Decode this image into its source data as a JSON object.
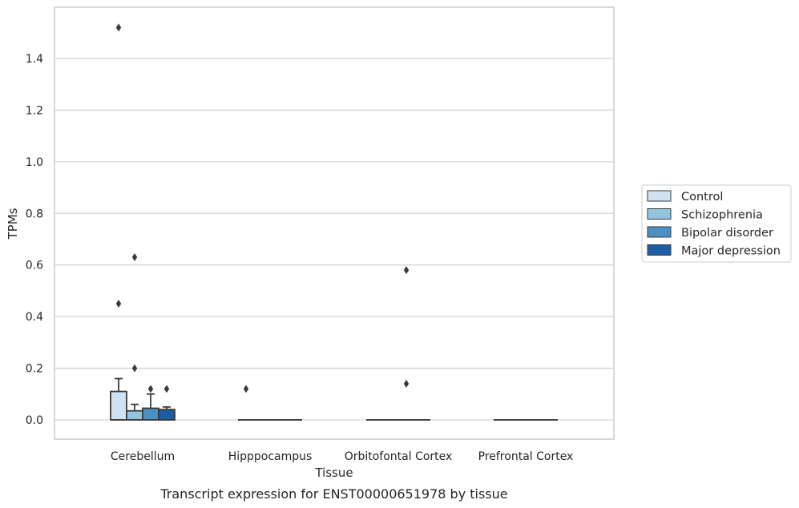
{
  "chart_data": {
    "type": "box",
    "xlabel": "Tissue",
    "ylabel": "TPMs",
    "caption": "Transcript expression for ENST00000651978 by tissue",
    "ylim": [
      -0.075,
      1.57
    ],
    "yticks": [
      0.0,
      0.2,
      0.4,
      0.6,
      0.8,
      1.0,
      1.2,
      1.4
    ],
    "ytick_labels": [
      "0.0",
      "0.2",
      "0.4",
      "0.6",
      "0.8",
      "1.0",
      "1.2",
      "1.4"
    ],
    "grid": true,
    "legend_position": "right",
    "categories": [
      "Cerebellum",
      "Hipppocampus",
      "Orbitofontal Cortex",
      "Prefrontal Cortex"
    ],
    "series": [
      {
        "name": "Control",
        "color": "#cfe1f2",
        "boxes": [
          {
            "q1": 0.0,
            "median": 0.0,
            "q3": 0.11,
            "whisker_low": 0.0,
            "whisker_high": 0.16,
            "outliers": [
              0.45,
              1.52
            ]
          },
          {
            "q1": 0.0,
            "median": 0.0,
            "q3": 0.0,
            "whisker_low": 0.0,
            "whisker_high": 0.0,
            "outliers": [
              0.12
            ]
          },
          {
            "q1": 0.0,
            "median": 0.0,
            "q3": 0.0,
            "whisker_low": 0.0,
            "whisker_high": 0.0,
            "outliers": []
          },
          {
            "q1": 0.0,
            "median": 0.0,
            "q3": 0.0,
            "whisker_low": 0.0,
            "whisker_high": 0.0,
            "outliers": []
          }
        ]
      },
      {
        "name": "Schizophrenia",
        "color": "#93c4de",
        "boxes": [
          {
            "q1": 0.0,
            "median": 0.0,
            "q3": 0.035,
            "whisker_low": 0.0,
            "whisker_high": 0.06,
            "outliers": [
              0.2,
              0.63
            ]
          },
          {
            "q1": 0.0,
            "median": 0.0,
            "q3": 0.0,
            "whisker_low": 0.0,
            "whisker_high": 0.0,
            "outliers": []
          },
          {
            "q1": 0.0,
            "median": 0.0,
            "q3": 0.0,
            "whisker_low": 0.0,
            "whisker_high": 0.0,
            "outliers": []
          },
          {
            "q1": 0.0,
            "median": 0.0,
            "q3": 0.0,
            "whisker_low": 0.0,
            "whisker_high": 0.0,
            "outliers": []
          }
        ]
      },
      {
        "name": "Bipolar disorder",
        "color": "#4a90c2",
        "boxes": [
          {
            "q1": 0.0,
            "median": 0.0,
            "q3": 0.045,
            "whisker_low": 0.0,
            "whisker_high": 0.1,
            "outliers": [
              0.12
            ]
          },
          {
            "q1": 0.0,
            "median": 0.0,
            "q3": 0.0,
            "whisker_low": 0.0,
            "whisker_high": 0.0,
            "outliers": []
          },
          {
            "q1": 0.0,
            "median": 0.0,
            "q3": 0.0,
            "whisker_low": 0.0,
            "whisker_high": 0.0,
            "outliers": [
              0.58,
              0.14
            ]
          },
          {
            "q1": 0.0,
            "median": 0.0,
            "q3": 0.0,
            "whisker_low": 0.0,
            "whisker_high": 0.0,
            "outliers": []
          }
        ]
      },
      {
        "name": "Major depression",
        "color": "#1c5ea6",
        "boxes": [
          {
            "q1": 0.0,
            "median": 0.0,
            "q3": 0.04,
            "whisker_low": 0.0,
            "whisker_high": 0.05,
            "outliers": [
              0.12
            ]
          },
          {
            "q1": 0.0,
            "median": 0.0,
            "q3": 0.0,
            "whisker_low": 0.0,
            "whisker_high": 0.0,
            "outliers": []
          },
          {
            "q1": 0.0,
            "median": 0.0,
            "q3": 0.0,
            "whisker_low": 0.0,
            "whisker_high": 0.0,
            "outliers": []
          },
          {
            "q1": 0.0,
            "median": 0.0,
            "q3": 0.0,
            "whisker_low": 0.0,
            "whisker_high": 0.0,
            "outliers": []
          }
        ]
      }
    ],
    "colors": {
      "grid": "#d3d3d3",
      "frame": "#cccccc",
      "box_edge": "#3a3a3a",
      "outlier": "#3a3a3a"
    }
  }
}
